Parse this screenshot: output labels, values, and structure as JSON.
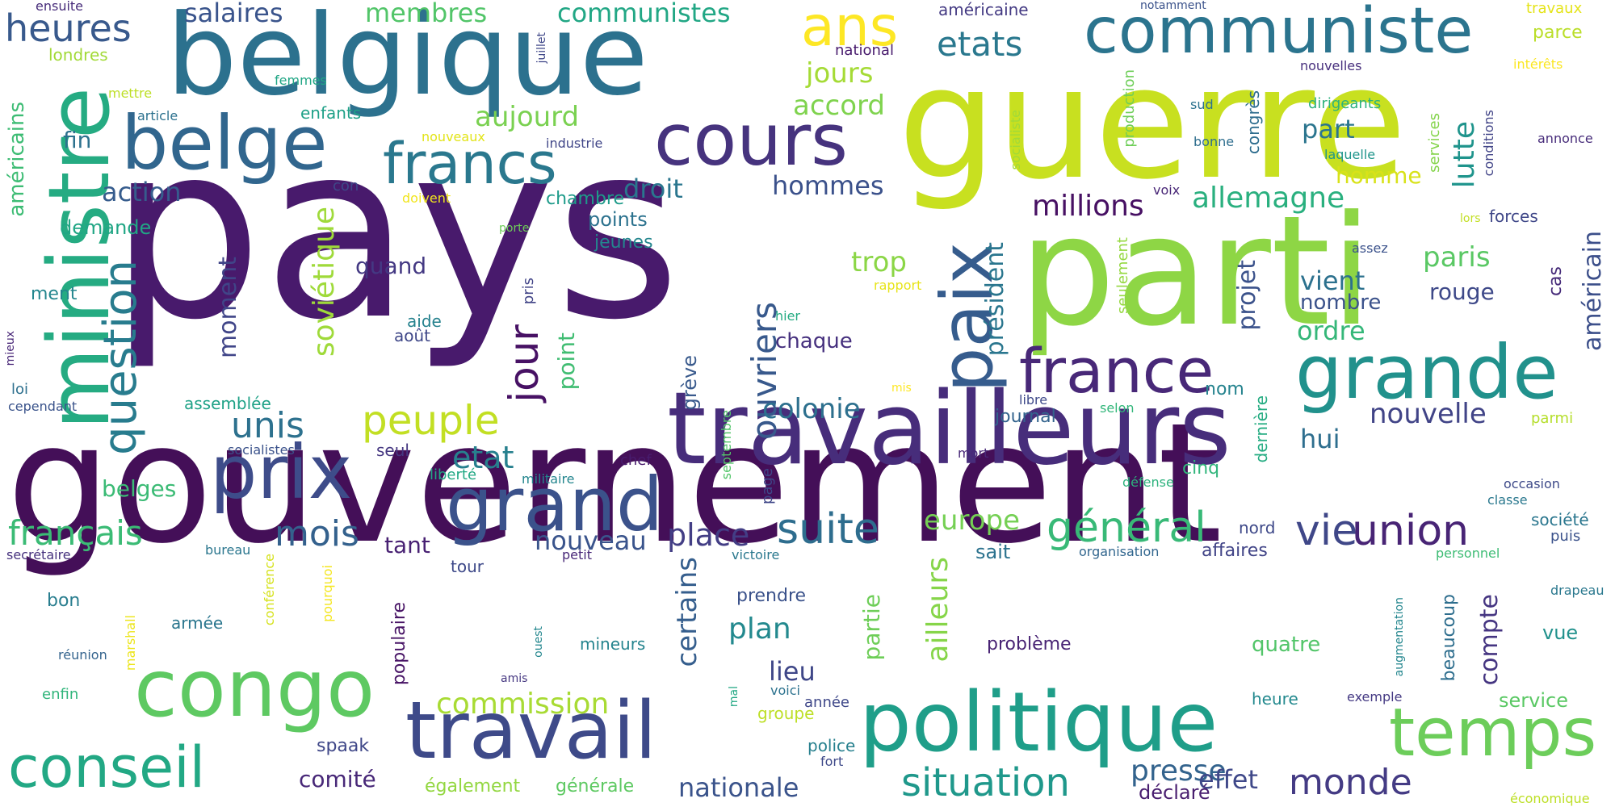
{
  "words": [
    {
      "text": "pays",
      "color": "#481a6c"
    },
    {
      "text": "gouvernement",
      "color": "#440f58"
    },
    {
      "text": "guerre",
      "color": "#c8e020"
    },
    {
      "text": "parti",
      "color": "#8ed645"
    },
    {
      "text": "travailleurs",
      "color": "#472d7b"
    },
    {
      "text": "belgique",
      "color": "#2c718e"
    },
    {
      "text": "politique",
      "color": "#1f9e89"
    },
    {
      "text": "ministre",
      "color": "#25ab82"
    },
    {
      "text": "communiste",
      "color": "#2b748e"
    },
    {
      "text": "travail",
      "color": "#3e4a89"
    },
    {
      "text": "congo",
      "color": "#5ec962"
    },
    {
      "text": "grande",
      "color": "#21918c"
    },
    {
      "text": "belge",
      "color": "#31668e"
    },
    {
      "text": "prix",
      "color": "#3e4c8a"
    },
    {
      "text": "cours",
      "color": "#46337e"
    },
    {
      "text": "grand",
      "color": "#3b528b"
    },
    {
      "text": "temps",
      "color": "#6ccd5a"
    },
    {
      "text": "france",
      "color": "#482878"
    },
    {
      "text": "paix",
      "color": "#365c8d"
    },
    {
      "text": "conseil",
      "color": "#22a884"
    },
    {
      "text": "francs",
      "color": "#2a788e"
    },
    {
      "text": "ans",
      "color": "#fde725"
    },
    {
      "text": "question",
      "color": "#287c8e"
    },
    {
      "text": "jour",
      "color": "#471164"
    },
    {
      "text": "peuple",
      "color": "#c2df23"
    },
    {
      "text": "suite",
      "color": "#2e6d8e"
    },
    {
      "text": "ouvriers",
      "color": "#38598c"
    },
    {
      "text": "situation",
      "color": "#1f988b"
    },
    {
      "text": "mois",
      "color": "#34618d"
    },
    {
      "text": "général",
      "color": "#38b977"
    },
    {
      "text": "union",
      "color": "#482475"
    },
    {
      "text": "monde",
      "color": "#443b84"
    },
    {
      "text": "vie",
      "color": "#3f4788"
    },
    {
      "text": "place",
      "color": "#433e85"
    },
    {
      "text": "unis",
      "color": "#2d718e"
    },
    {
      "text": "etat",
      "color": "#27808e"
    },
    {
      "text": "français",
      "color": "#3bbb75"
    },
    {
      "text": "nouveau",
      "color": "#3a548c"
    },
    {
      "text": "soviétique",
      "color": "#9fda3a"
    },
    {
      "text": "presse",
      "color": "#33638d"
    },
    {
      "text": "commission",
      "color": "#a8db34"
    },
    {
      "text": "etats",
      "color": "#2a788e"
    },
    {
      "text": "allemagne",
      "color": "#2ab07f"
    },
    {
      "text": "certains",
      "color": "#355e8d"
    },
    {
      "text": "lutte",
      "color": "#1f948c"
    },
    {
      "text": "nouvelle",
      "color": "#414487"
    },
    {
      "text": "compte",
      "color": "#453581"
    },
    {
      "text": "effet",
      "color": "#3f4889"
    },
    {
      "text": "millions",
      "color": "#471063"
    },
    {
      "text": "président",
      "color": "#2a768e"
    },
    {
      "text": "ailleurs",
      "color": "#86d549"
    },
    {
      "text": "partie",
      "color": "#6ece58"
    },
    {
      "text": "europe",
      "color": "#75d054"
    },
    {
      "text": "plan",
      "color": "#23898e"
    },
    {
      "text": "lieu",
      "color": "#3f4788"
    },
    {
      "text": "nationale",
      "color": "#3a538b"
    },
    {
      "text": "projet",
      "color": "#3b528b"
    },
    {
      "text": "colonie",
      "color": "#2d708e"
    },
    {
      "text": "moment",
      "color": "#404588"
    },
    {
      "text": "membres",
      "color": "#52c569"
    },
    {
      "text": "communistes",
      "color": "#22a785"
    },
    {
      "text": "heures",
      "color": "#38598c"
    },
    {
      "text": "salaires",
      "color": "#3a548c"
    },
    {
      "text": "aujourd",
      "color": "#7ad151"
    },
    {
      "text": "jours",
      "color": "#a5db36"
    },
    {
      "text": "accord",
      "color": "#7fd34e"
    },
    {
      "text": "droit",
      "color": "#2a768e"
    },
    {
      "text": "action",
      "color": "#365c8d"
    },
    {
      "text": "hommes",
      "color": "#3b518b"
    },
    {
      "text": "américains",
      "color": "#3dbc74"
    },
    {
      "text": "américain",
      "color": "#3c4f8a"
    },
    {
      "text": "paris",
      "color": "#5ac864"
    },
    {
      "text": "rouge",
      "color": "#3e4989"
    },
    {
      "text": "vient",
      "color": "#2c718e"
    },
    {
      "text": "ordre",
      "color": "#35b779"
    },
    {
      "text": "nombre",
      "color": "#3b528b"
    },
    {
      "text": "trop",
      "color": "#8bd646"
    },
    {
      "text": "part",
      "color": "#2b758e"
    },
    {
      "text": "homme",
      "color": "#d8e219"
    },
    {
      "text": "hui",
      "color": "#2e6e8e"
    },
    {
      "text": "point",
      "color": "#40bd72"
    },
    {
      "text": "grève",
      "color": "#38598c"
    },
    {
      "text": "tant",
      "color": "#482173"
    },
    {
      "text": "belges",
      "color": "#3bbb75"
    },
    {
      "text": "demande",
      "color": "#21a685"
    },
    {
      "text": "fin",
      "color": "#2c718e"
    },
    {
      "text": "quand",
      "color": "#443983"
    },
    {
      "text": "points",
      "color": "#2c728e"
    },
    {
      "text": "jeunes",
      "color": "#24868e"
    },
    {
      "text": "chambre",
      "color": "#1e9b8a"
    },
    {
      "text": "chaque",
      "color": "#46307e"
    },
    {
      "text": "nom",
      "color": "#25838e"
    },
    {
      "text": "cinq",
      "color": "#31b57b"
    },
    {
      "text": "dernière",
      "color": "#25ac82"
    },
    {
      "text": "journal",
      "color": "#33638d"
    },
    {
      "text": "sait",
      "color": "#2c728e"
    },
    {
      "text": "nord",
      "color": "#3e4989"
    },
    {
      "text": "affaires",
      "color": "#414487"
    },
    {
      "text": "prendre",
      "color": "#3b528b"
    },
    {
      "text": "problème",
      "color": "#482374"
    },
    {
      "text": "quatre",
      "color": "#52c569"
    },
    {
      "text": "beaucoup",
      "color": "#2e6e8e"
    },
    {
      "text": "heure",
      "color": "#23898e"
    },
    {
      "text": "service",
      "color": "#5ac864"
    },
    {
      "text": "vue",
      "color": "#21918c"
    },
    {
      "text": "forces",
      "color": "#3f4788"
    },
    {
      "text": "cas",
      "color": "#472c7a"
    },
    {
      "text": "société",
      "color": "#2a768e"
    },
    {
      "text": "puis",
      "color": "#3b528b"
    },
    {
      "text": "parmi",
      "color": "#b5de2b"
    },
    {
      "text": "classe",
      "color": "#2a788e"
    },
    {
      "text": "occasion",
      "color": "#3e4a89"
    },
    {
      "text": "armée",
      "color": "#2a768e"
    },
    {
      "text": "bon",
      "color": "#287d8e"
    },
    {
      "text": "réunion",
      "color": "#33638d"
    },
    {
      "text": "enfin",
      "color": "#31b57b"
    },
    {
      "text": "spaak",
      "color": "#3f4788"
    },
    {
      "text": "comité",
      "color": "#482878"
    },
    {
      "text": "tour",
      "color": "#3e4989"
    },
    {
      "text": "mineurs",
      "color": "#25848e"
    },
    {
      "text": "groupe",
      "color": "#bddf26"
    },
    {
      "text": "police",
      "color": "#27808e"
    },
    {
      "text": "année",
      "color": "#3f4889"
    },
    {
      "text": "aide",
      "color": "#26828e"
    },
    {
      "text": "août",
      "color": "#3f4788"
    },
    {
      "text": "seul",
      "color": "#453781"
    },
    {
      "text": "ensuite",
      "color": "#472c7a"
    },
    {
      "text": "londres",
      "color": "#a2da37"
    },
    {
      "text": "femmes",
      "color": "#21a685"
    },
    {
      "text": "enfants",
      "color": "#1fa188"
    },
    {
      "text": "mettre",
      "color": "#bddf26"
    },
    {
      "text": "article",
      "color": "#2c718e"
    },
    {
      "text": "con",
      "color": "#3e4989"
    },
    {
      "text": "nouveaux",
      "color": "#e2e418"
    },
    {
      "text": "doivent",
      "color": "#f1e51d"
    },
    {
      "text": "porte",
      "color": "#6ece58"
    },
    {
      "text": "industrie",
      "color": "#404688"
    },
    {
      "text": "juillet",
      "color": "#3f4788"
    },
    {
      "text": "national",
      "color": "#481b6d"
    },
    {
      "text": "américaine",
      "color": "#443a83"
    },
    {
      "text": "notamment",
      "color": "#3b528b"
    },
    {
      "text": "nouvelles",
      "color": "#472f7d"
    },
    {
      "text": "travaux",
      "color": "#e5e419"
    },
    {
      "text": "parce",
      "color": "#bade28"
    },
    {
      "text": "intérêts",
      "color": "#fbe723"
    },
    {
      "text": "dirigeants",
      "color": "#2db27d"
    },
    {
      "text": "laquelle",
      "color": "#1f958b"
    },
    {
      "text": "conditions",
      "color": "#414487"
    },
    {
      "text": "annonce",
      "color": "#472c7a"
    },
    {
      "text": "sud",
      "color": "#2c728e"
    },
    {
      "text": "bonne",
      "color": "#2e6e8e"
    },
    {
      "text": "congrès",
      "color": "#2e6d8e"
    },
    {
      "text": "production",
      "color": "#6ece58"
    },
    {
      "text": "services",
      "color": "#84d44b"
    },
    {
      "text": "lors",
      "color": "#c2df23"
    },
    {
      "text": "assez",
      "color": "#3b528b"
    },
    {
      "text": "seulement",
      "color": "#95d840"
    },
    {
      "text": "rapport",
      "color": "#e7e419"
    },
    {
      "text": "socialiste",
      "color": "#a0da39"
    },
    {
      "text": "voix",
      "color": "#482677"
    },
    {
      "text": "hier",
      "color": "#25ab82"
    },
    {
      "text": "mis",
      "color": "#fde725"
    },
    {
      "text": "libre",
      "color": "#3e4989"
    },
    {
      "text": "selon",
      "color": "#32b67a"
    },
    {
      "text": "défense",
      "color": "#2db27d"
    },
    {
      "text": "mort",
      "color": "#482878"
    },
    {
      "text": "septembre",
      "color": "#52c569"
    },
    {
      "text": "page",
      "color": "#3f4788"
    },
    {
      "text": "militaire",
      "color": "#24868e"
    },
    {
      "text": "chef",
      "color": "#481b6d"
    },
    {
      "text": "liberté",
      "color": "#22a884"
    },
    {
      "text": "socialistes",
      "color": "#3b528b"
    },
    {
      "text": "assemblée",
      "color": "#1fa287"
    },
    {
      "text": "cependant",
      "color": "#3a538b"
    },
    {
      "text": "loi",
      "color": "#2d708e"
    },
    {
      "text": "mieux",
      "color": "#482677"
    },
    {
      "text": "ment",
      "color": "#24868e"
    },
    {
      "text": "secrétaire",
      "color": "#46327e"
    },
    {
      "text": "bureau",
      "color": "#2a768e"
    },
    {
      "text": "conférence",
      "color": "#d5e21a"
    },
    {
      "text": "marshall",
      "color": "#ece51b"
    },
    {
      "text": "pourquoi",
      "color": "#f4e61e"
    },
    {
      "text": "populaire",
      "color": "#471365"
    },
    {
      "text": "ouest",
      "color": "#24878e"
    },
    {
      "text": "amis",
      "color": "#453781"
    },
    {
      "text": "petit",
      "color": "#482878"
    },
    {
      "text": "victoire",
      "color": "#2a788e"
    },
    {
      "text": "mal",
      "color": "#22a884"
    },
    {
      "text": "voici",
      "color": "#2c728e"
    },
    {
      "text": "fort",
      "color": "#3e4989"
    },
    {
      "text": "également",
      "color": "#93d741"
    },
    {
      "text": "générale",
      "color": "#5ec962"
    },
    {
      "text": "déclaré",
      "color": "#481d6f"
    },
    {
      "text": "économique",
      "color": "#bddf26"
    },
    {
      "text": "organisation",
      "color": "#31668e"
    },
    {
      "text": "personnel",
      "color": "#3dbc74"
    },
    {
      "text": "drapeau",
      "color": "#2a788e"
    },
    {
      "text": "augmentation",
      "color": "#24868e"
    },
    {
      "text": "exemple",
      "color": "#443983"
    },
    {
      "text": "pris",
      "color": "#414487"
    }
  ]
}
